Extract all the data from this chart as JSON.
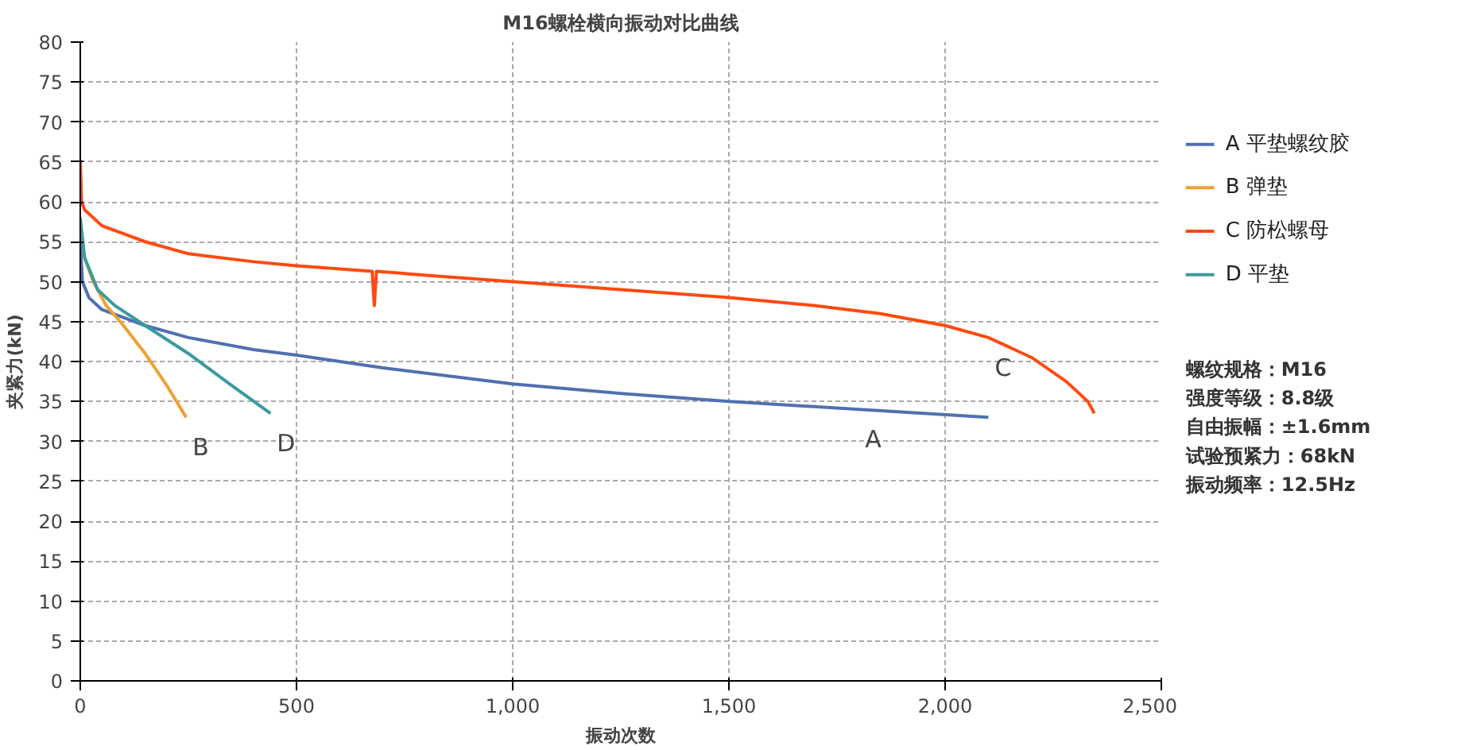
{
  "chart_data": {
    "type": "line",
    "title": "M16螺栓横向振动对比曲线",
    "xlabel": "振动次数",
    "ylabel": "夹紧力(kN)",
    "xlim": [
      0,
      2500
    ],
    "xticks": [
      0,
      500,
      {
        "value": 1000,
        "label": "1,000"
      },
      {
        "value": 1500,
        "label": "1,500"
      },
      {
        "value": 2000,
        "label": "2,000"
      },
      {
        "value": 2500,
        "label": "2,500"
      }
    ],
    "ylim": [
      0,
      80
    ],
    "yticks": [
      0,
      5,
      10,
      15,
      20,
      25,
      30,
      35,
      40,
      45,
      50,
      55,
      60,
      65,
      70,
      75,
      80
    ],
    "grid": true,
    "legend": "right",
    "line_style": "solid",
    "marker": "none",
    "series": [
      {
        "name": "A 平垫螺纹胶",
        "color": "#5070b0",
        "x": [
          0,
          5,
          20,
          50,
          100,
          150,
          250,
          400,
          500,
          700,
          1000,
          1250,
          1500,
          1800,
          2100
        ],
        "values": [
          55,
          50,
          48,
          46.5,
          45.5,
          44.5,
          43,
          41.5,
          40.8,
          39.2,
          37.2,
          36,
          35,
          34,
          33
        ]
      },
      {
        "name": "B 弹垫",
        "color": "#f0a030",
        "x": [
          10,
          30,
          60,
          100,
          150,
          200,
          245
        ],
        "values": [
          53,
          50,
          47,
          44.5,
          41,
          37,
          33
        ]
      },
      {
        "name": "C 防松螺母",
        "color": "#ff4a10",
        "x": [
          0,
          3,
          10,
          50,
          100,
          150,
          250,
          400,
          500,
          675,
          680,
          685,
          800,
          1000,
          1250,
          1500,
          1700,
          1850,
          2000,
          2100,
          2200,
          2280,
          2330,
          2345
        ],
        "values": [
          65,
          60,
          59,
          57,
          56,
          55,
          53.5,
          52.5,
          52,
          51.3,
          47,
          51.3,
          50.8,
          50,
          49,
          48,
          47,
          46,
          44.5,
          43,
          40.5,
          37.5,
          35,
          33.5
        ]
      },
      {
        "name": "D 平垫",
        "color": "#3a9aa0",
        "x": [
          0,
          10,
          40,
          80,
          150,
          250,
          350,
          440
        ],
        "values": [
          58,
          53,
          49,
          47,
          44.5,
          41,
          37,
          33.5
        ]
      }
    ],
    "annotations": [
      {
        "text": "A",
        "x": 1800,
        "y": 34
      },
      {
        "text": "B",
        "x": 245,
        "y": 33
      },
      {
        "text": "C",
        "x": 2100,
        "y": 43
      },
      {
        "text": "D",
        "x": 440,
        "y": 33.5
      },
      "螺纹规格：M16",
      "强度等级：8.8级",
      "自由振幅：±1.6mm",
      "试验预紧力：68kN",
      "振动频率：12.5Hz"
    ]
  }
}
